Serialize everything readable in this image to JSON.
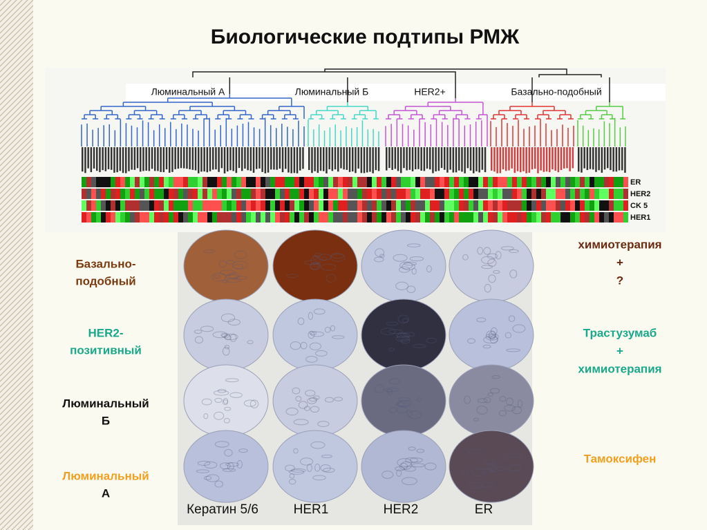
{
  "title": "Биологические подтипы РМЖ",
  "dendrogram": {
    "groups": [
      "Люминальный А",
      "Люминальный Б",
      "HER2+",
      "Базально-подобный"
    ],
    "markers": [
      "ER",
      "HER2",
      "CK 5",
      "HER1"
    ]
  },
  "rows": [
    {
      "label": [
        "Базально-",
        "подобный"
      ],
      "therapy": [
        "химиотерапия",
        "+",
        "?"
      ]
    },
    {
      "label": [
        "HER2-",
        "позитивный"
      ],
      "therapy": [
        "Трастузумаб",
        "+",
        "химиотерапия"
      ]
    },
    {
      "label": [
        "Люминальный",
        "Б"
      ],
      "therapy": []
    },
    {
      "label": [
        "Люминальный",
        "А"
      ],
      "therapy": [
        "Тамоксифен"
      ]
    }
  ],
  "columns": [
    "Кератин 5/6",
    "HER1",
    "HER2",
    "ER"
  ]
}
